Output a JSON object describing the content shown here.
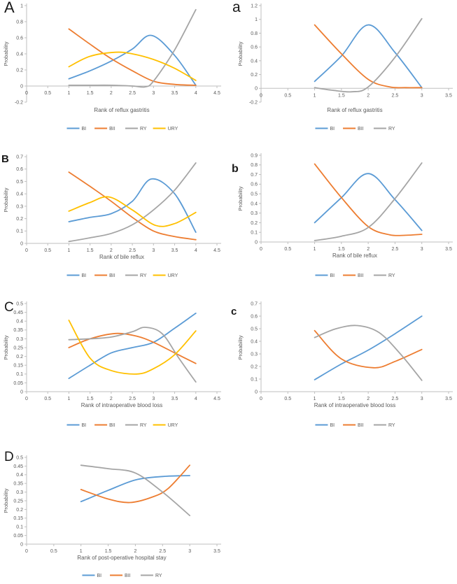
{
  "figure": {
    "background": "#ffffff"
  },
  "colors": {
    "BI": "#5B9BD5",
    "BII": "#ED7D31",
    "RY": "#A5A5A5",
    "URY": "#FFC000",
    "axis": "#BFBFBF",
    "tick_text": "#595959"
  },
  "chart_data": [
    {
      "panel_label": "A",
      "type": "line",
      "xlabel": "Rank of reflux gastritis",
      "ylabel": "Probability",
      "xlim": [
        0,
        4.5
      ],
      "ylim": [
        -0.2,
        1
      ],
      "xticks": [
        0,
        0.5,
        1,
        1.5,
        2,
        2.5,
        3,
        3.5,
        4,
        4.5
      ],
      "yticks": [
        -0.2,
        0,
        0.2,
        0.4,
        0.6,
        0.8,
        1
      ],
      "grid": false,
      "legend_position": "bottom",
      "series": [
        {
          "name": "BI",
          "x": [
            1,
            1.5,
            2,
            2.5,
            2.95,
            3.5,
            4
          ],
          "y": [
            0.09,
            0.19,
            0.31,
            0.46,
            0.63,
            0.38,
            0.01
          ]
        },
        {
          "name": "BII",
          "x": [
            1,
            1.5,
            2,
            2.5,
            3,
            3.5,
            4
          ],
          "y": [
            0.71,
            0.52,
            0.34,
            0.19,
            0.06,
            0.02,
            0.01
          ]
        },
        {
          "name": "RY",
          "x": [
            1,
            1.5,
            2,
            2.5,
            2.8,
            3,
            3.5,
            4
          ],
          "y": [
            0.01,
            0.01,
            0.01,
            0.0,
            -0.01,
            0.06,
            0.45,
            0.95
          ]
        },
        {
          "name": "URY",
          "x": [
            1,
            1.5,
            2.1,
            2.5,
            3,
            3.5,
            4
          ],
          "y": [
            0.24,
            0.37,
            0.42,
            0.4,
            0.33,
            0.22,
            0.07
          ]
        }
      ]
    },
    {
      "panel_label": "a",
      "type": "line",
      "xlabel": "Rank of reflux gastritis",
      "ylabel": "Probability",
      "xlim": [
        0,
        3.5
      ],
      "ylim": [
        -0.2,
        1.2
      ],
      "xticks": [
        0,
        0.5,
        1,
        1.5,
        2,
        2.5,
        3,
        3.5
      ],
      "yticks": [
        -0.2,
        0,
        0.2,
        0.4,
        0.6,
        0.8,
        1,
        1.2
      ],
      "grid": false,
      "legend_position": "bottom",
      "series": [
        {
          "name": "BI",
          "x": [
            1,
            1.5,
            2,
            2.5,
            3
          ],
          "y": [
            0.1,
            0.47,
            0.92,
            0.52,
            0.01
          ]
        },
        {
          "name": "BII",
          "x": [
            1,
            1.5,
            2,
            2.4,
            2.7,
            3
          ],
          "y": [
            0.92,
            0.5,
            0.13,
            0.02,
            0.01,
            0.01
          ]
        },
        {
          "name": "RY",
          "x": [
            1,
            1.35,
            1.7,
            2,
            2.5,
            3
          ],
          "y": [
            0.01,
            -0.03,
            -0.05,
            0.02,
            0.45,
            1.01
          ]
        }
      ]
    },
    {
      "panel_label": "B",
      "type": "line",
      "xlabel": "Rank of bile reflux",
      "ylabel": "Probability",
      "xlim": [
        0,
        4.5
      ],
      "ylim": [
        0,
        0.7
      ],
      "xticks": [
        0,
        0.5,
        1,
        1.5,
        2,
        2.5,
        3,
        3.5,
        4,
        4.5
      ],
      "yticks": [
        0,
        0.1,
        0.2,
        0.3,
        0.4,
        0.5,
        0.6,
        0.7
      ],
      "grid": false,
      "legend_position": "bottom",
      "series": [
        {
          "name": "BI",
          "x": [
            1,
            1.5,
            2,
            2.5,
            2.95,
            3.5,
            4
          ],
          "y": [
            0.175,
            0.21,
            0.24,
            0.34,
            0.52,
            0.4,
            0.09
          ]
        },
        {
          "name": "BII",
          "x": [
            1,
            1.5,
            2,
            2.5,
            3,
            3.5,
            4
          ],
          "y": [
            0.575,
            0.46,
            0.34,
            0.21,
            0.1,
            0.055,
            0.03
          ]
        },
        {
          "name": "RY",
          "x": [
            1,
            1.5,
            2,
            2.5,
            3,
            3.5,
            4
          ],
          "y": [
            0.015,
            0.045,
            0.08,
            0.15,
            0.27,
            0.43,
            0.65
          ]
        },
        {
          "name": "URY",
          "x": [
            1,
            1.5,
            1.95,
            2.5,
            3.05,
            3.5,
            4
          ],
          "y": [
            0.26,
            0.33,
            0.375,
            0.27,
            0.145,
            0.16,
            0.25
          ]
        }
      ]
    },
    {
      "panel_label": "b",
      "type": "line",
      "xlabel": "Rank of bile reflux",
      "ylabel": "Probability",
      "xlim": [
        0,
        3.5
      ],
      "ylim": [
        0,
        0.9
      ],
      "xticks": [
        0,
        0.5,
        1,
        1.5,
        2,
        2.5,
        3,
        3.5
      ],
      "yticks": [
        0,
        0.1,
        0.2,
        0.3,
        0.4,
        0.5,
        0.6,
        0.7,
        0.8,
        0.9
      ],
      "grid": false,
      "legend_position": "bottom",
      "series": [
        {
          "name": "BI",
          "x": [
            1,
            1.5,
            2,
            2.5,
            3
          ],
          "y": [
            0.2,
            0.46,
            0.71,
            0.44,
            0.12
          ]
        },
        {
          "name": "BII",
          "x": [
            1,
            1.5,
            2,
            2.4,
            2.7,
            3
          ],
          "y": [
            0.81,
            0.46,
            0.16,
            0.075,
            0.07,
            0.08
          ]
        },
        {
          "name": "RY",
          "x": [
            1,
            1.5,
            2,
            2.5,
            3
          ],
          "y": [
            0.015,
            0.06,
            0.15,
            0.45,
            0.82
          ]
        }
      ]
    },
    {
      "panel_label": "C",
      "type": "line",
      "xlabel": "Rank of intraoperative blood loss",
      "ylabel": "Probability",
      "xlim": [
        0,
        4.5
      ],
      "ylim": [
        0,
        0.5
      ],
      "xticks": [
        0,
        0.5,
        1,
        1.5,
        2,
        2.5,
        3,
        3.5,
        4,
        4.5
      ],
      "yticks": [
        0,
        0.05,
        0.1,
        0.15,
        0.2,
        0.25,
        0.3,
        0.35,
        0.4,
        0.45,
        0.5
      ],
      "grid": false,
      "legend_position": "bottom",
      "series": [
        {
          "name": "BI",
          "x": [
            1,
            1.5,
            2,
            2.5,
            3,
            3.5,
            4
          ],
          "y": [
            0.075,
            0.15,
            0.22,
            0.25,
            0.28,
            0.36,
            0.445
          ]
        },
        {
          "name": "BII",
          "x": [
            1,
            1.5,
            2.1,
            2.6,
            3,
            3.5,
            4
          ],
          "y": [
            0.25,
            0.3,
            0.33,
            0.315,
            0.28,
            0.22,
            0.16
          ]
        },
        {
          "name": "RY",
          "x": [
            1,
            1.5,
            2,
            2.5,
            2.8,
            3.2,
            3.6,
            4
          ],
          "y": [
            0.295,
            0.3,
            0.31,
            0.34,
            0.365,
            0.33,
            0.19,
            0.055
          ]
        },
        {
          "name": "URY",
          "x": [
            1,
            1.5,
            2,
            2.6,
            3,
            3.5,
            4
          ],
          "y": [
            0.405,
            0.19,
            0.12,
            0.1,
            0.13,
            0.21,
            0.345
          ]
        }
      ]
    },
    {
      "panel_label": "c",
      "type": "line",
      "xlabel": "Rank of intraoperative blood loss",
      "ylabel": "Probability",
      "xlim": [
        0,
        3.5
      ],
      "ylim": [
        0,
        0.7
      ],
      "xticks": [
        0,
        0.5,
        1,
        1.5,
        2,
        2.5,
        3,
        3.5
      ],
      "yticks": [
        0,
        0.1,
        0.2,
        0.3,
        0.4,
        0.5,
        0.6,
        0.7
      ],
      "grid": false,
      "legend_position": "bottom",
      "series": [
        {
          "name": "BI",
          "x": [
            1,
            1.5,
            2,
            2.5,
            3
          ],
          "y": [
            0.095,
            0.22,
            0.33,
            0.46,
            0.6
          ]
        },
        {
          "name": "BII",
          "x": [
            1,
            1.5,
            2.1,
            2.5,
            3
          ],
          "y": [
            0.485,
            0.26,
            0.19,
            0.24,
            0.335
          ]
        },
        {
          "name": "RY",
          "x": [
            1,
            1.4,
            1.8,
            2.2,
            2.6,
            3
          ],
          "y": [
            0.43,
            0.5,
            0.525,
            0.47,
            0.3,
            0.09
          ]
        }
      ]
    },
    {
      "panel_label": "D",
      "type": "line",
      "xlabel": "Rank of post-operative hospital stay",
      "ylabel": "Probability",
      "xlim": [
        0,
        3.5
      ],
      "ylim": [
        0,
        0.5
      ],
      "xticks": [
        0,
        0.5,
        1,
        1.5,
        2,
        2.5,
        3,
        3.5
      ],
      "yticks": [
        0,
        0.05,
        0.1,
        0.15,
        0.2,
        0.25,
        0.3,
        0.35,
        0.4,
        0.45,
        0.5
      ],
      "grid": false,
      "legend_position": "bottom",
      "series": [
        {
          "name": "BI",
          "x": [
            1,
            1.5,
            2,
            2.5,
            3
          ],
          "y": [
            0.245,
            0.31,
            0.37,
            0.39,
            0.395
          ]
        },
        {
          "name": "BII",
          "x": [
            1,
            1.5,
            1.9,
            2.3,
            2.6,
            3
          ],
          "y": [
            0.315,
            0.26,
            0.24,
            0.27,
            0.32,
            0.455
          ]
        },
        {
          "name": "RY",
          "x": [
            1,
            1.5,
            2,
            2.5,
            3
          ],
          "y": [
            0.455,
            0.435,
            0.41,
            0.3,
            0.165
          ]
        }
      ]
    }
  ]
}
